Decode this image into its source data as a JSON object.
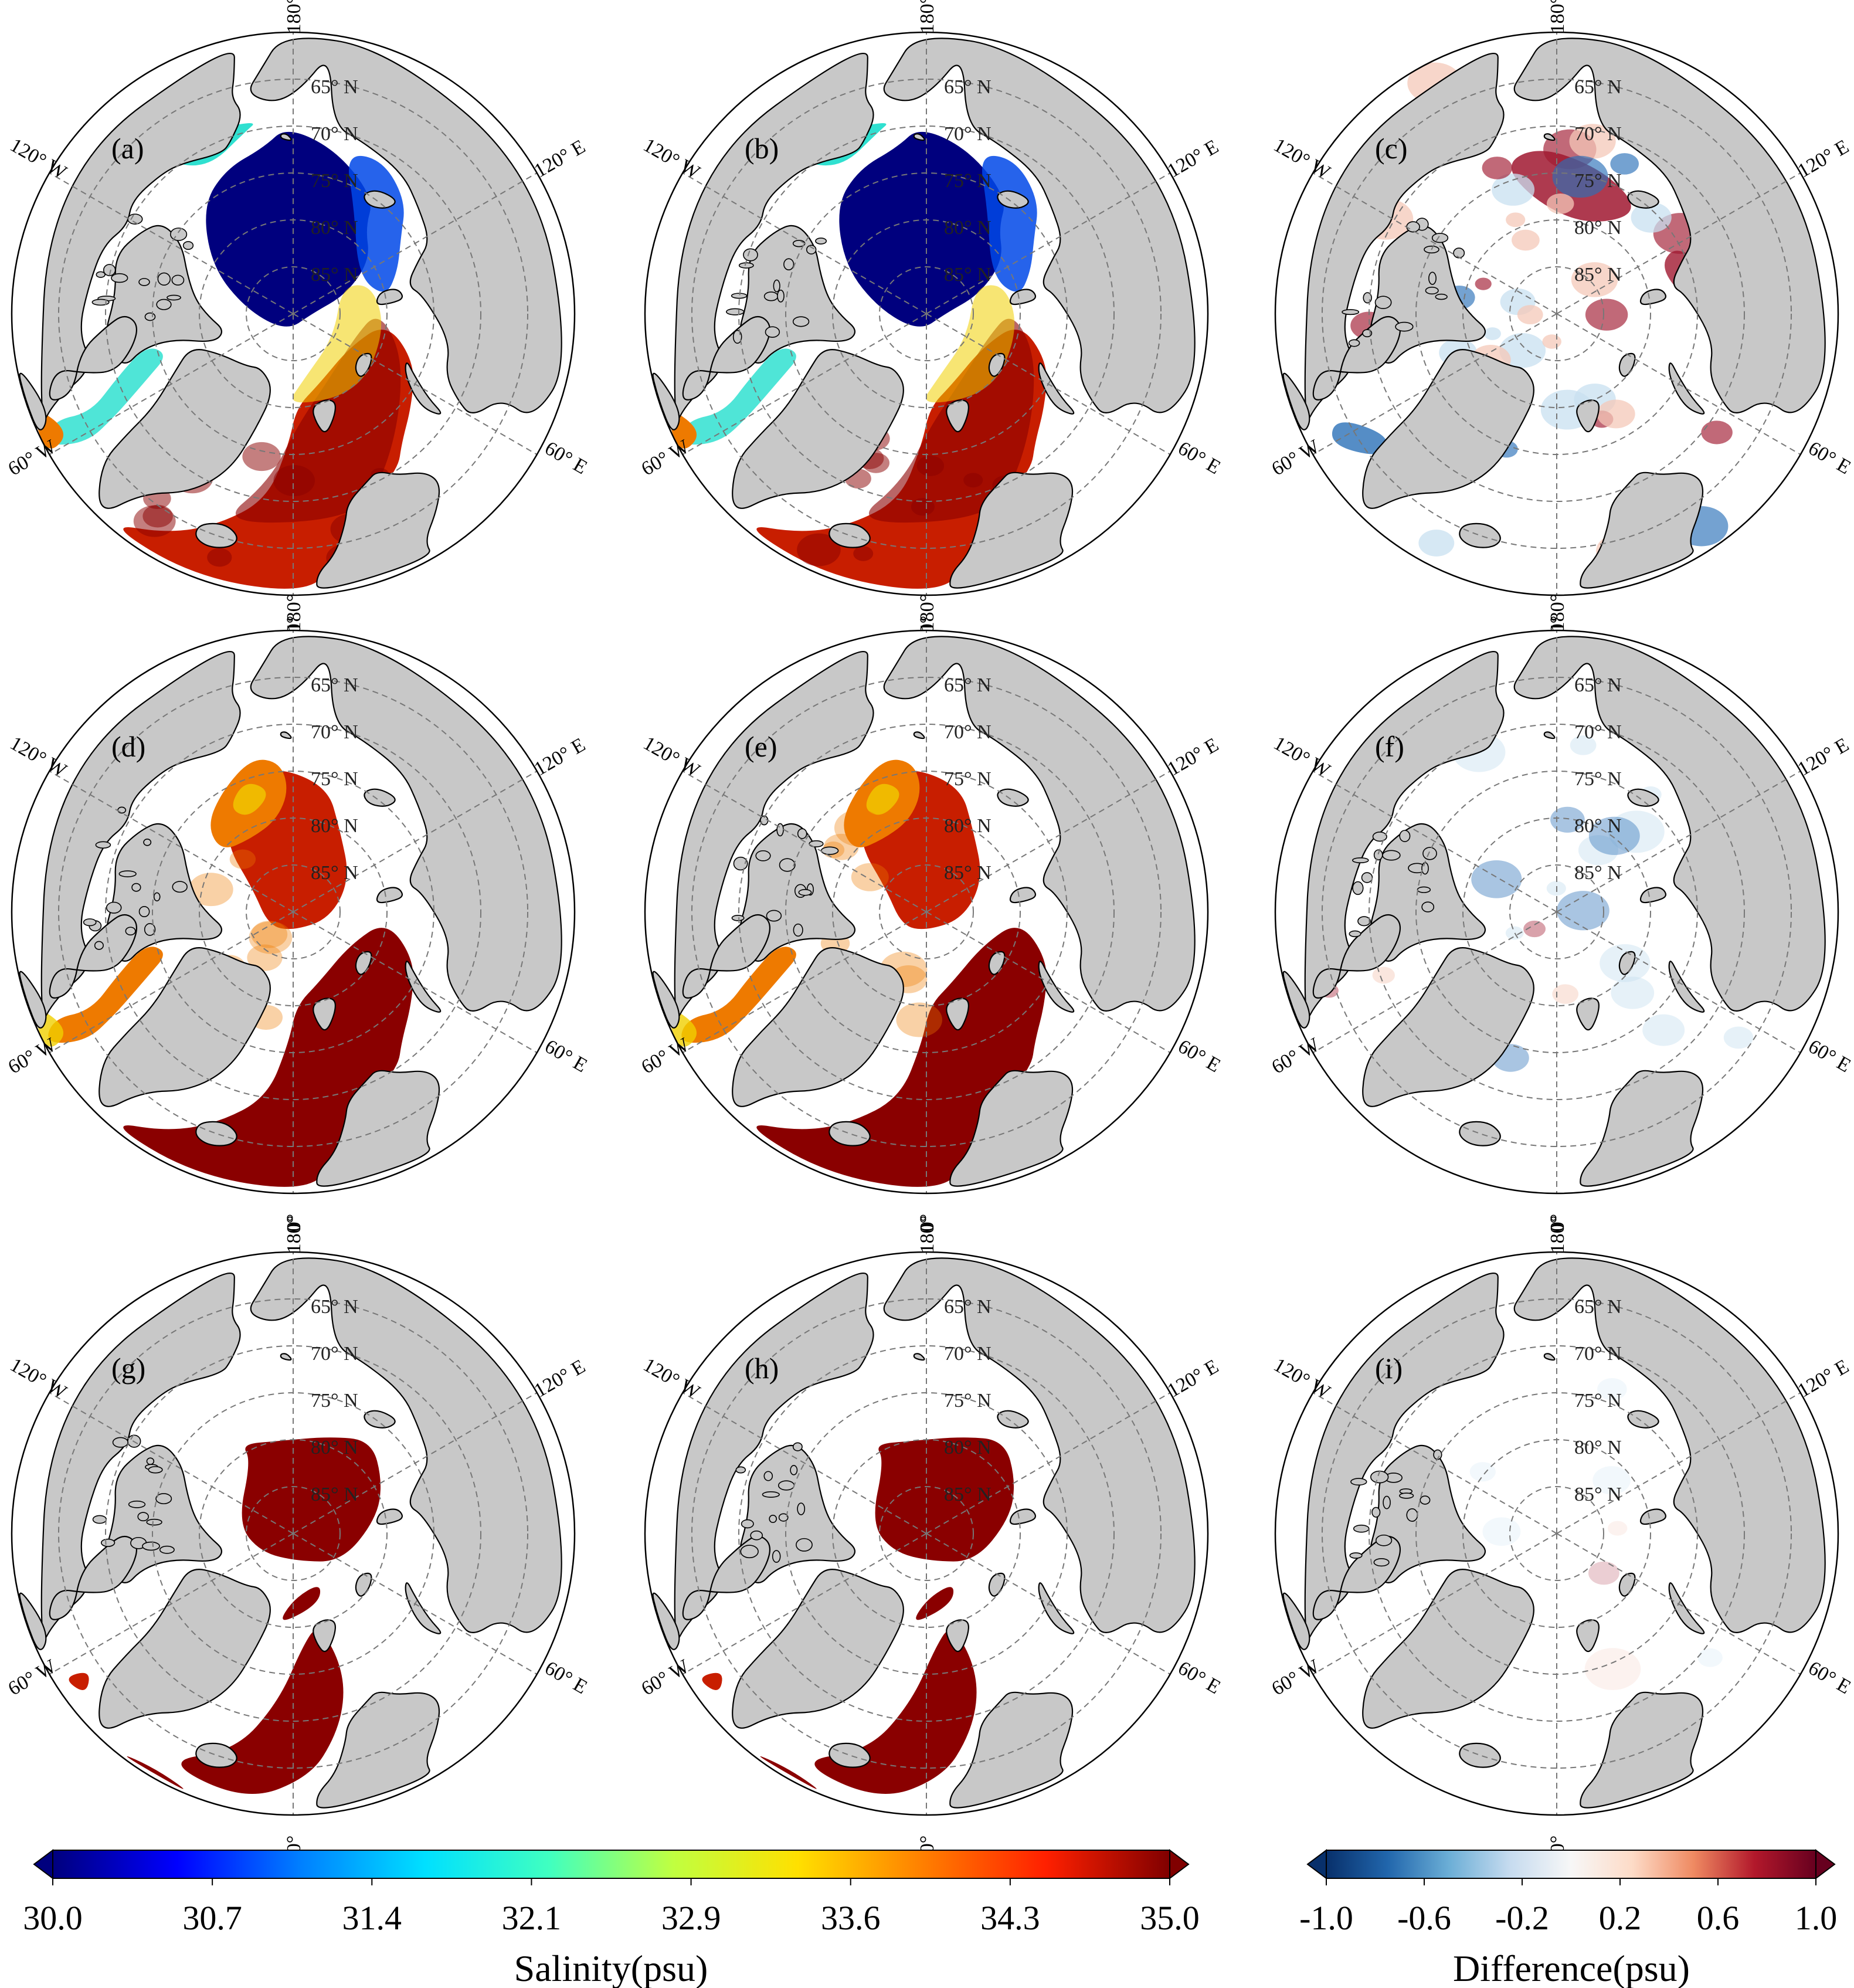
{
  "colors": {
    "land": "#c8c8c8",
    "ocean_blank": "#ffffff",
    "coast": "#000000",
    "grid": "#777777",
    "dark_red": "#8a0000",
    "red": "#c81e00",
    "orange": "#ee7a00",
    "yellow": "#f0d000",
    "cyan": "#30e0d0",
    "blue": "#0048e8",
    "navy": "#00007e",
    "diff_blue": "#2a70b8",
    "diff_lightblue": "#c8e0f0",
    "diff_red": "#a01830",
    "diff_pink": "#f4c8b8"
  },
  "grid_labels": {
    "lat": [
      "65° N",
      "70° N",
      "75° N",
      "80° N",
      "85° N"
    ],
    "lon": [
      "180°",
      "0°",
      "120° W",
      "120° E",
      "60° W",
      "60° E"
    ]
  },
  "panels": [
    {
      "label": "(a)",
      "field": "salinity",
      "state": "full"
    },
    {
      "label": "(b)",
      "field": "salinity",
      "state": "full"
    },
    {
      "label": "(c)",
      "field": "difference",
      "state": "full"
    },
    {
      "label": "(d)",
      "field": "salinity",
      "state": "reduced"
    },
    {
      "label": "(e)",
      "field": "salinity",
      "state": "reduced"
    },
    {
      "label": "(f)",
      "field": "difference",
      "state": "reduced"
    },
    {
      "label": "(g)",
      "field": "salinity",
      "state": "minimal"
    },
    {
      "label": "(h)",
      "field": "salinity",
      "state": "minimal"
    },
    {
      "label": "(i)",
      "field": "difference",
      "state": "minimal"
    }
  ],
  "colorbars": [
    {
      "title": "Salinity(psu)",
      "ticks": [
        "30.0",
        "30.7",
        "31.4",
        "32.1",
        "32.9",
        "33.6",
        "34.3",
        "35.0"
      ],
      "stops": [
        "#00007e",
        "#0000ff",
        "#0080ff",
        "#00e0ff",
        "#40ffc0",
        "#c0ff40",
        "#ffe000",
        "#ff8000",
        "#ff2000",
        "#800000"
      ]
    },
    {
      "title": "Difference(psu)",
      "ticks": [
        "-1.0",
        "-0.6",
        "-0.2",
        "0.2",
        "0.6",
        "1.0"
      ],
      "stops": [
        "#08306b",
        "#2166ac",
        "#6baed6",
        "#c6dbef",
        "#f7f7f7",
        "#fddbc7",
        "#ef8a62",
        "#b2182b",
        "#67001f"
      ]
    }
  ]
}
